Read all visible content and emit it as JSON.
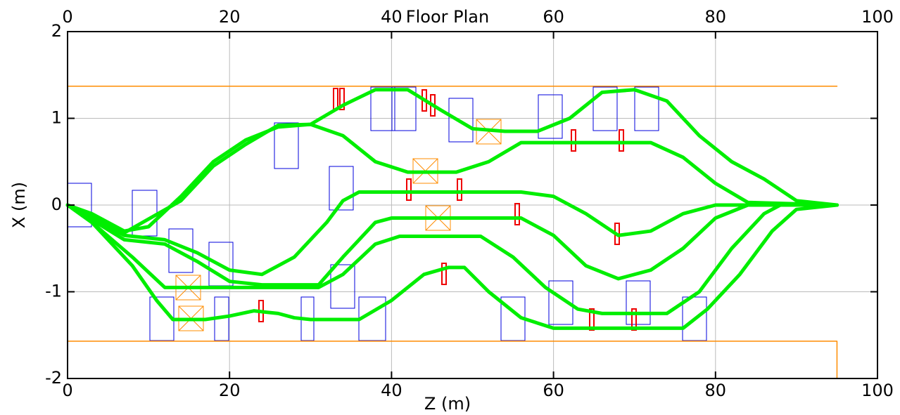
{
  "chart_data": {
    "type": "line",
    "title": "Floor Plan",
    "xlabel": "Z (m)",
    "ylabel": "X (m)",
    "xlim": [
      0,
      100
    ],
    "ylim": [
      -2,
      2
    ],
    "xticks": [
      0,
      20,
      40,
      60,
      80,
      100
    ],
    "yticks": [
      -2,
      -1,
      0,
      1,
      2
    ],
    "grid": true,
    "series": [
      {
        "color": "#ff8c00",
        "x": [
          0,
          95
        ],
        "values": [
          1.37,
          1.37
        ]
      },
      {
        "color": "#ff8c00",
        "x": [
          0,
          95,
          95
        ],
        "values": [
          -1.57,
          -1.57,
          -2
        ]
      },
      {
        "color": "#00ee00",
        "x": [
          0,
          3,
          7,
          10,
          14,
          18,
          22,
          26,
          30,
          34,
          38,
          42,
          46,
          50,
          54,
          58,
          62,
          66,
          70,
          74,
          78,
          82,
          86,
          90,
          95
        ],
        "values": [
          0,
          -0.1,
          -0.3,
          -0.25,
          0.1,
          0.5,
          0.75,
          0.9,
          0.93,
          1.15,
          1.33,
          1.33,
          1.1,
          0.88,
          0.85,
          0.85,
          1.0,
          1.3,
          1.33,
          1.2,
          0.8,
          0.5,
          0.3,
          0.05,
          0
        ]
      },
      {
        "color": "#00ee00",
        "x": [
          0,
          7,
          14,
          18,
          22,
          26,
          30,
          34,
          38,
          42,
          48,
          52,
          56,
          64,
          72,
          76,
          80,
          84,
          95
        ],
        "values": [
          0,
          -0.32,
          0.05,
          0.45,
          0.7,
          0.92,
          0.93,
          0.8,
          0.5,
          0.38,
          0.38,
          0.5,
          0.72,
          0.72,
          0.72,
          0.55,
          0.25,
          0.03,
          0
        ]
      },
      {
        "color": "#00ee00",
        "x": [
          0,
          3,
          7,
          12,
          16,
          20,
          24,
          28,
          32,
          34,
          36,
          40,
          56,
          60,
          64,
          68,
          72,
          76,
          80,
          95
        ],
        "values": [
          0,
          -0.15,
          -0.35,
          -0.4,
          -0.55,
          -0.75,
          -0.8,
          -0.6,
          -0.2,
          0.05,
          0.15,
          0.15,
          0.15,
          0.1,
          -0.1,
          -0.35,
          -0.3,
          -0.1,
          0,
          0
        ]
      },
      {
        "color": "#00ee00",
        "x": [
          0,
          3,
          7,
          12,
          16,
          20,
          24,
          31,
          34,
          38,
          40,
          56,
          60,
          64,
          68,
          72,
          76,
          80,
          84,
          95
        ],
        "values": [
          0,
          -0.17,
          -0.4,
          -0.45,
          -0.65,
          -0.88,
          -0.92,
          -0.92,
          -0.6,
          -0.2,
          -0.15,
          -0.15,
          -0.35,
          -0.7,
          -0.85,
          -0.75,
          -0.5,
          -0.15,
          0,
          0
        ]
      },
      {
        "color": "#00ee00",
        "x": [
          0,
          3,
          8,
          12,
          31,
          34,
          38,
          41,
          51,
          55,
          59,
          63,
          66,
          74,
          78,
          82,
          86,
          88,
          95
        ],
        "values": [
          0,
          -0.2,
          -0.6,
          -0.95,
          -0.95,
          -0.8,
          -0.45,
          -0.36,
          -0.36,
          -0.6,
          -0.95,
          -1.2,
          -1.25,
          -1.25,
          -1.0,
          -0.5,
          -0.1,
          0,
          0
        ]
      },
      {
        "color": "#00ee00",
        "x": [
          0,
          3,
          8,
          11,
          13,
          17,
          20,
          23,
          26,
          28,
          30,
          36,
          40,
          44,
          47,
          49,
          52,
          56,
          60,
          76,
          79,
          83,
          87,
          90,
          95
        ],
        "values": [
          0,
          -0.2,
          -0.7,
          -1.1,
          -1.32,
          -1.32,
          -1.28,
          -1.22,
          -1.25,
          -1.3,
          -1.32,
          -1.32,
          -1.1,
          -0.8,
          -0.72,
          -0.72,
          -1.0,
          -1.3,
          -1.42,
          -1.42,
          -1.2,
          -0.8,
          -0.3,
          -0.05,
          0
        ]
      }
    ]
  }
}
